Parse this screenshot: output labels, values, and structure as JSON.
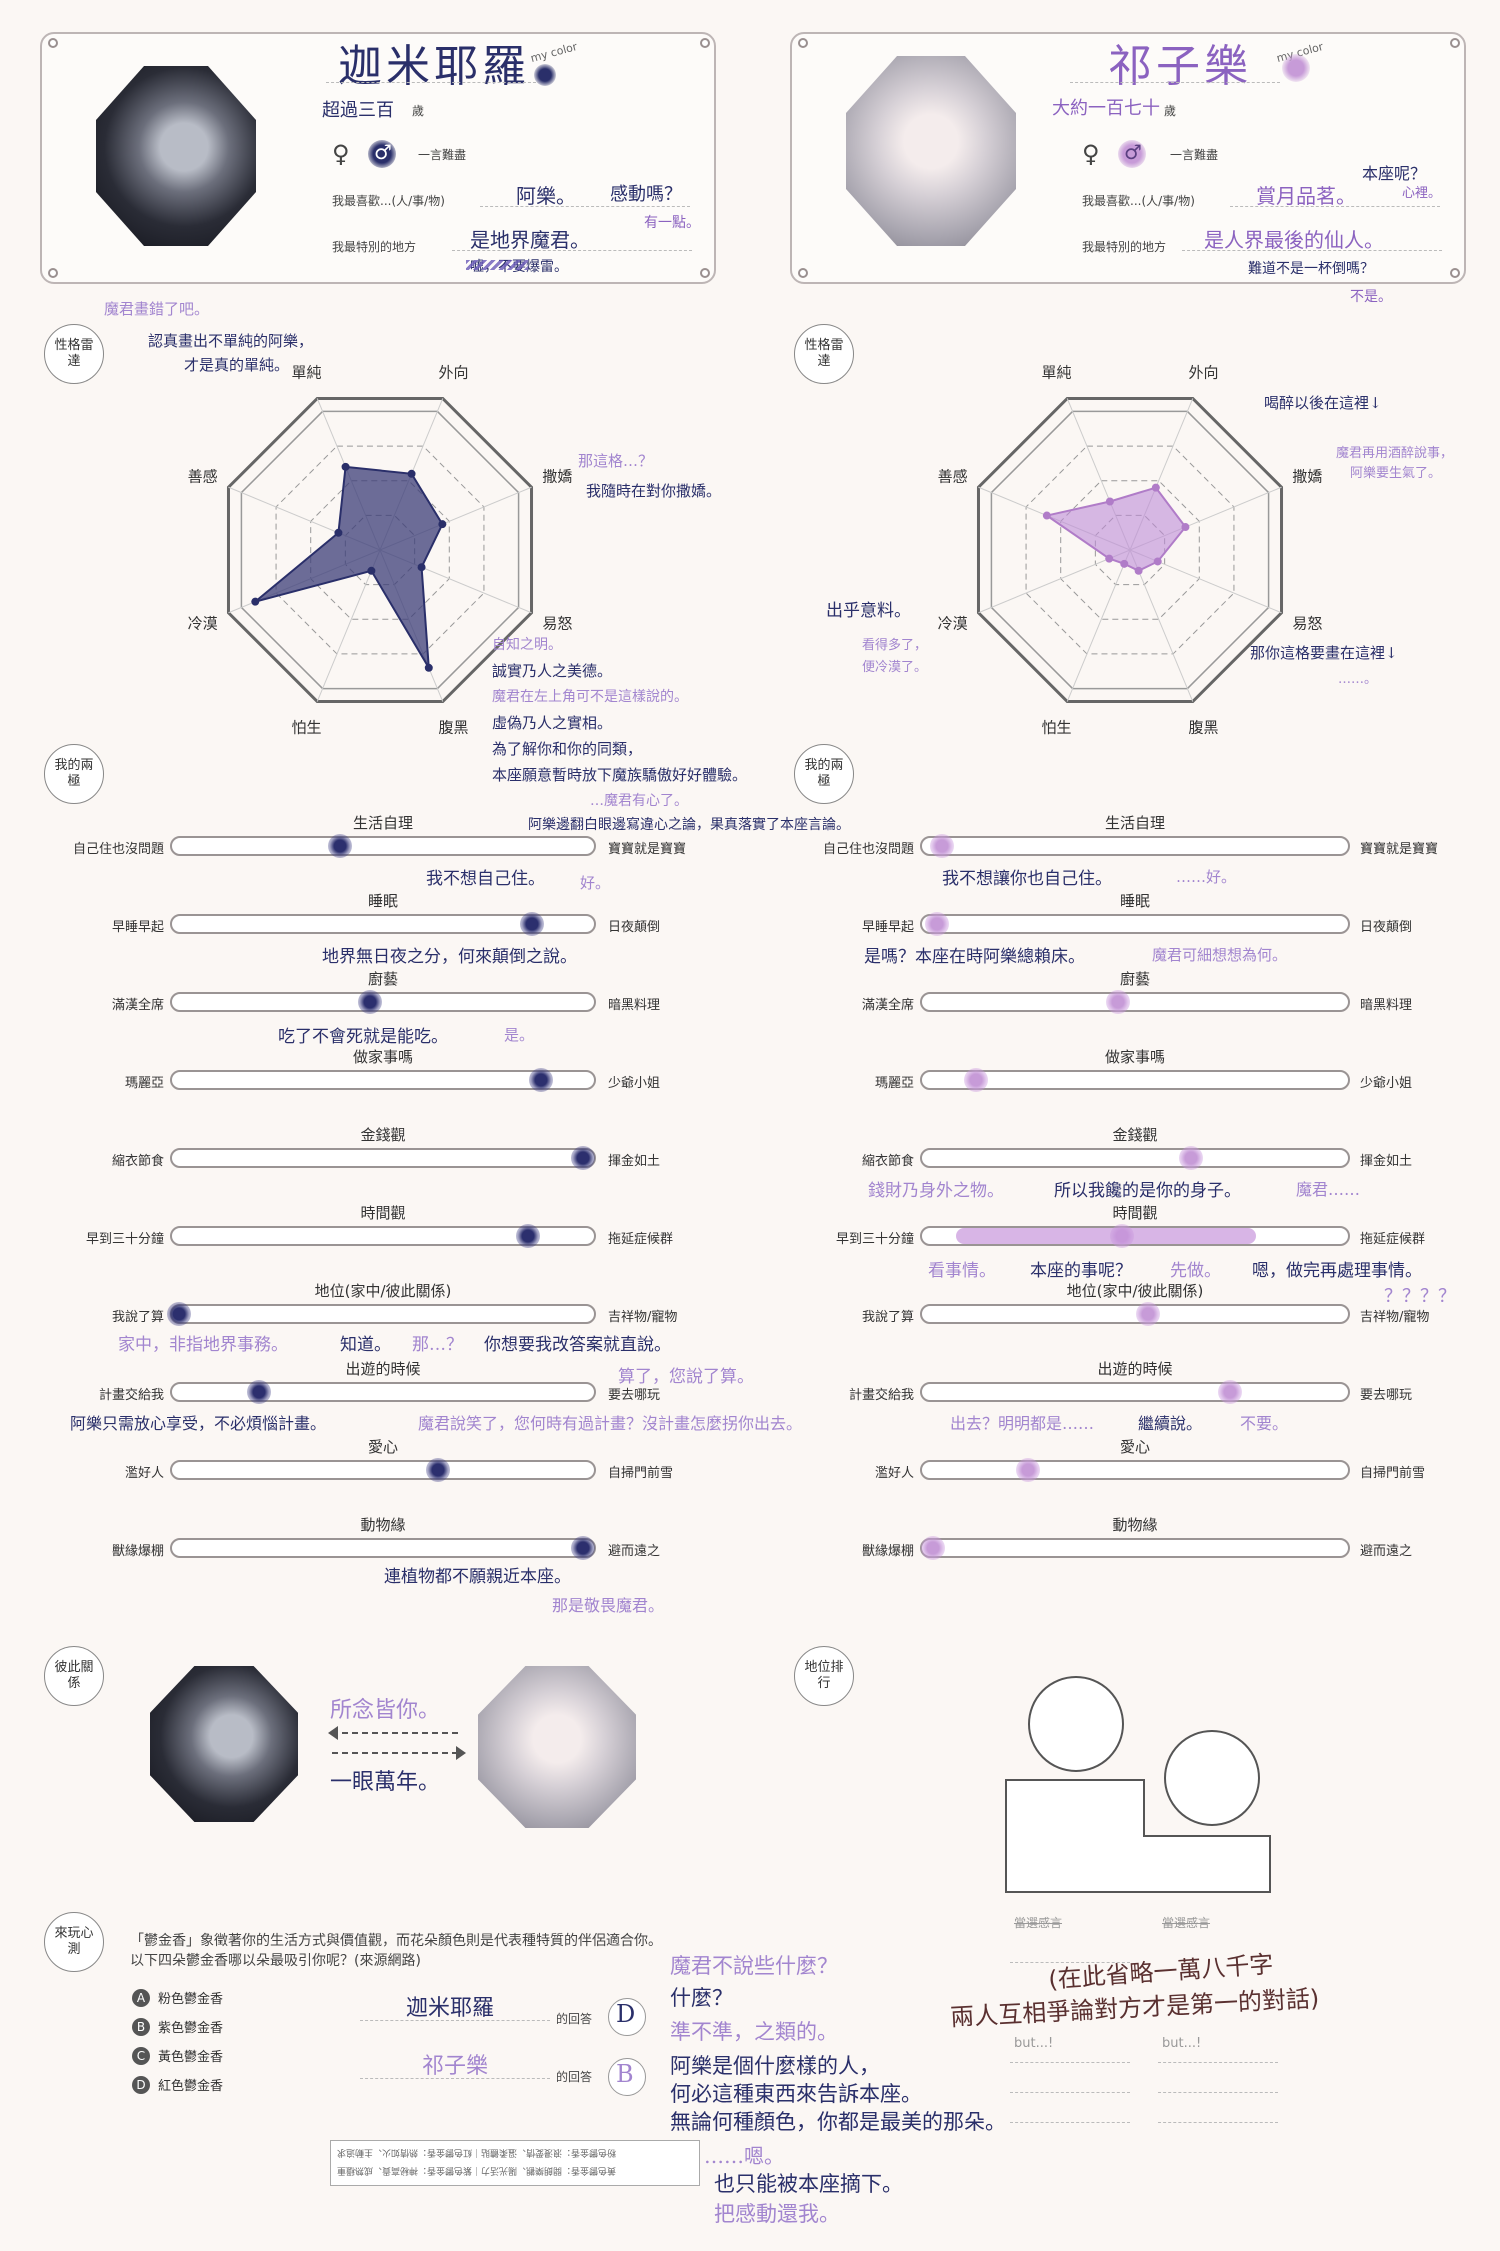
{
  "left_card": {
    "name": "迦米耶羅",
    "my_color_label": "my color",
    "age": "超過三百",
    "age_unit": "歲",
    "gender_female": "♀",
    "gender_male": "♂",
    "one_word_label": "一言難盡",
    "likes_label": "我最喜歡...(人/事/物)",
    "likes_value": "阿樂。",
    "likes_note": "感動嗎？",
    "likes_note2": "有一點。",
    "special_label": "我最特別的地方",
    "special_value": "是地界魔君。",
    "special_note": "嘘，不要爆雷。"
  },
  "right_card": {
    "name": "祁子樂",
    "my_color_label": "my color",
    "age": "大約一百七十",
    "age_unit": "歲",
    "gender_female": "♀",
    "gender_male": "♂",
    "one_word_label": "一言難盡",
    "likes_label": "我最喜歡...(人/事/物)",
    "likes_value": "賞月品茗。",
    "likes_note": "本座呢？",
    "likes_note2": "心裡。",
    "special_label": "我最特別的地方",
    "special_value": "是人界最後的仙人。",
    "special_note": "難道不是一杯倒嗎？",
    "special_note2": "不是。"
  },
  "radar_left": {
    "badge": "性格雷達",
    "labels": [
      "單純",
      "外向",
      "撒嬌",
      "易怒",
      "腹黑",
      "怕生",
      "冷漠",
      "善感"
    ],
    "values": [
      0.6,
      0.55,
      0.45,
      0.3,
      0.85,
      0.15,
      0.9,
      0.3
    ],
    "color": "#2a2f6a",
    "fill": "rgba(60,62,120,0.75)"
  },
  "radar_right": {
    "badge": "性格雷達",
    "labels": [
      "單純",
      "外向",
      "撒嬌",
      "易怒",
      "腹黑",
      "怕生",
      "冷漠",
      "善感"
    ],
    "values": [
      0.35,
      0.45,
      0.4,
      0.2,
      0.15,
      0.1,
      0.15,
      0.6
    ],
    "color": "#b07cc8",
    "fill": "rgba(190,140,215,0.6)"
  },
  "radar_notes": {
    "n1": "魔君畫錯了吧。",
    "n2": "認真畫出不單純的阿樂，",
    "n3": "才是真的單純。",
    "n4": "那這格…？",
    "n5": "我隨時在對你撒嬌。",
    "n6": "自知之明。",
    "n7": "誠實乃人之美德。",
    "n8": "魔君在左上角可不是這樣說的。",
    "n9": "虛偽乃人之實相。",
    "n10": "為了解你和你的同類，",
    "n11": "本座願意暫時放下魔族驕傲好好體驗。",
    "n12": "…魔君有心了。",
    "n13": "阿樂邊翻白眼邊寫違心之論，果真落實了本座言論。",
    "r1": "喝醉以後在這裡↓",
    "r2": "魔君再用酒醉說事，",
    "r3": "阿樂要生氣了。",
    "r4": "出乎意料。",
    "r5": "看得多了，",
    "r6": "便冷漠了。",
    "r7": "那你這格要畫在這裡↓",
    "r8": "……。"
  },
  "extremes": {
    "badge": "我的兩極",
    "titles": [
      "生活自理",
      "睡眠",
      "廚藝",
      "做家事嗎",
      "金錢觀",
      "時間觀",
      "地位(家中/彼此關係)",
      "出遊的時候",
      "愛心",
      "動物緣"
    ],
    "left_labels": [
      "自己住也沒問題",
      "早睡早起",
      "滿漢全席",
      "瑪麗亞",
      "縮衣節食",
      "早到三十分鐘",
      "我說了算",
      "計畫交給我",
      "濫好人",
      "獸緣爆棚"
    ],
    "right_labels": [
      "寶寶就是寶寶",
      "日夜顛倒",
      "暗黑料理",
      "少爺小姐",
      "揮金如土",
      "拖延症候群",
      "吉祥物/寵物",
      "要去哪玩",
      "自掃門前雪",
      "避而遠之"
    ],
    "left_values": [
      0.4,
      0.85,
      0.47,
      0.87,
      0.97,
      0.84,
      0.02,
      0.21,
      0.63,
      0.97
    ],
    "right_values": [
      0.05,
      0.04,
      0.46,
      0.13,
      0.63,
      0.47,
      0.53,
      0.72,
      0.25,
      0.03
    ]
  },
  "extremes_notes": {
    "l1": "我不想自己住。",
    "l1b": "好。",
    "l2": "地界無日夜之分，何來顛倒之說。",
    "l3": "吃了不會死就是能吃。",
    "l3b": "是。",
    "l7a": "家中，非指地界事務。",
    "l7b": "知道。",
    "l7c": "那…？",
    "l7d": "你想要我改答案就直說。",
    "l7e": "算了，您說了算。",
    "l8": "阿樂只需放心享受，不必煩惱計畫。",
    "l8b": "魔君說笑了，您何時有過計畫？沒計畫怎麼拐你出去。",
    "l8c": "出去？明明都是……",
    "l8d": "繼續說。",
    "l8e": "不要。",
    "l10": "連植物都不願親近本座。",
    "l10b": "那是敬畏魔君。",
    "r1": "我不想讓你也自己住。",
    "r1b": "……好。",
    "r2": "是嗎？本座在時阿樂總賴床。",
    "r2b": "魔君可細想想為何。",
    "r5a": "錢財乃身外之物。",
    "r5b": "所以我饞的是你的身子。",
    "r5c": "魔君……",
    "r6a": "看事情。",
    "r6b": "本座的事呢？",
    "r6c": "先做。",
    "r6d": "嗯，做完再處理事情。",
    "r7": "？？？？"
  },
  "relation": {
    "badge": "彼此關係",
    "line1": "所念皆你。",
    "line2": "一眼萬年。"
  },
  "rank": {
    "badge": "地位排行",
    "cap_left": "當選感言",
    "cap_right": "當選感言",
    "big_note": "(在此省略一萬八千字",
    "big_note2": "兩人互相爭論對方才是第一的對話)",
    "but_left": "but...!",
    "but_right": "but...!"
  },
  "quiz": {
    "badge": "來玩心測",
    "intro1": "「鬱金香」象徵著你的生活方式與價值觀，而花朵顏色則是代表種特質的伴侶適合你。",
    "intro2": "以下四朵鬱金香哪以朵最吸引你呢？(來源網路)",
    "options": [
      {
        "letter": "A",
        "text": "粉色鬱金香"
      },
      {
        "letter": "B",
        "text": "紫色鬱金香"
      },
      {
        "letter": "C",
        "text": "黃色鬱金香"
      },
      {
        "letter": "D",
        "text": "紅色鬱金香"
      }
    ],
    "ans1_name": "迦米耶羅",
    "ans1_suffix": "的回答",
    "ans1_letter": "D",
    "ans2_name": "祁子樂",
    "ans2_suffix": "的回答",
    "ans2_letter": "B",
    "q1": "魔君不說些什麼？",
    "q2": "什麼？",
    "q3": "準不準，之類的。",
    "q4": "阿樂是個什麼樣的人，",
    "q5": "何必這種東西來告訴本座。",
    "q6": "無論何種顏色，你都是最美的那朵。",
    "q7": "……嗯。",
    "q8": "也只能被本座摘下。",
    "q9": "把感動還我。",
    "flipped1": "粉色鬱金香：浪漫愛情、溫柔體貼｜紅色鬱金香：熱情如火、主動追求",
    "flipped2": "黃色鬱金香：開朗樂觀、陽光活力｜紫色鬱金香：神秘高貴、成熟穩重"
  }
}
